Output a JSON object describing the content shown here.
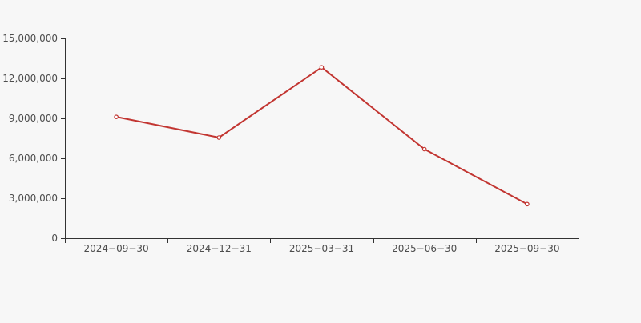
{
  "chart_data": {
    "type": "line",
    "title": "",
    "xlabel": "",
    "ylabel": "",
    "categories": [
      "2024−09−30",
      "2024−12−31",
      "2025−03−31",
      "2025−06−30",
      "2025−09−30"
    ],
    "values": [
      9110000,
      7560000,
      12830000,
      6690000,
      2560000
    ],
    "ylim": [
      0,
      15000000
    ],
    "y_ticks": [
      0,
      3000000,
      6000000,
      9000000,
      12000000,
      15000000
    ],
    "y_tick_labels": [
      "0",
      "3,000,000",
      "6,000,000",
      "9,000,000",
      "12,000,000",
      "15,000,000"
    ],
    "grid": false,
    "legend": false,
    "marker": "hollow-circle",
    "colors": {
      "background": "#f7f7f7",
      "line": "#c23531",
      "marker_fill": "#ffffff",
      "axis": "#333333",
      "tick_label": "#4d4d4d"
    }
  }
}
